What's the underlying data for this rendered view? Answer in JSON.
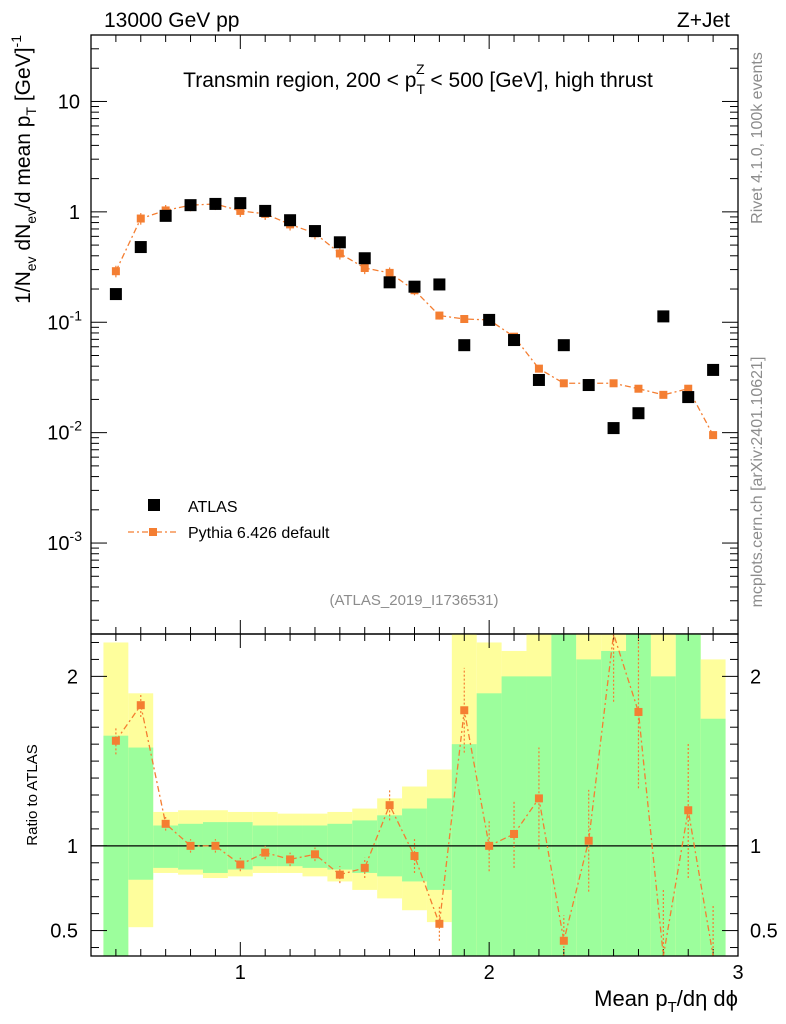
{
  "header": {
    "left": "13000 GeV pp",
    "right": "Z+Jet"
  },
  "side_labels": {
    "rivet": "Rivet 4.1.0,  100k events",
    "mcplots": "mcplots.cern.ch [arXiv:2401.10621]"
  },
  "chart_data": [
    {
      "type": "scatter",
      "title": "Transmin region, 200 < p_T^Z < 500 [GeV], high thrust",
      "title_parts": {
        "pre": "Transmin region, 200 < p",
        "sub": "T",
        "sup": "Z",
        "post": " < 500 [GeV], high thrust"
      },
      "ylabel": "1/N_ev dN_ev/d mean p_T [GeV]^-1",
      "ylabel_parts": {
        "a": "1/N",
        "a_sub": "ev",
        "b": " dN",
        "b_sub": "ev",
        "c": "/d mean p",
        "c_sub": "T",
        "d": " [GeV]",
        "d_sup": "-1"
      },
      "yscale": "log",
      "ylim": [
        0.00015,
        40
      ],
      "xlim": [
        0.4,
        3.0
      ],
      "x_ticks": [
        1,
        2,
        3
      ],
      "x_tick_labels": [
        "1",
        "2",
        "3"
      ],
      "y_ticks": [
        0.001,
        0.01,
        0.1,
        1,
        10
      ],
      "y_tick_labels": [
        {
          "base": "10",
          "exp": "-3"
        },
        {
          "base": "10",
          "exp": "-2"
        },
        {
          "base": "10",
          "exp": "-1"
        },
        {
          "base": "1",
          "exp": ""
        },
        {
          "base": "10",
          "exp": ""
        }
      ],
      "watermark": "(ATLAS_2019_I1736531)",
      "legend_position": "lower-left",
      "series": [
        {
          "name": "ATLAS",
          "marker": "square",
          "color": "#000000",
          "x": [
            0.5,
            0.6,
            0.7,
            0.8,
            0.9,
            1.0,
            1.1,
            1.2,
            1.3,
            1.4,
            1.5,
            1.6,
            1.7,
            1.8,
            1.9,
            2.0,
            2.1,
            2.2,
            2.3,
            2.4,
            2.5,
            2.6,
            2.7,
            2.8,
            2.9
          ],
          "y": [
            0.18,
            0.48,
            0.92,
            1.15,
            1.18,
            1.2,
            1.02,
            0.84,
            0.67,
            0.53,
            0.38,
            0.23,
            0.21,
            0.22,
            0.062,
            0.105,
            0.069,
            0.03,
            0.062,
            0.027,
            0.011,
            0.015,
            0.113,
            0.021,
            0.037
          ]
        },
        {
          "name": "Pythia 6.426 default",
          "marker": "square-line",
          "color": "#f47e32",
          "x": [
            0.5,
            0.6,
            0.7,
            0.8,
            0.9,
            1.0,
            1.1,
            1.2,
            1.3,
            1.4,
            1.5,
            1.6,
            1.7,
            1.8,
            1.9,
            2.0,
            2.1,
            2.2,
            2.3,
            2.4,
            2.5,
            2.6,
            2.7,
            2.8,
            2.9
          ],
          "y": [
            0.29,
            0.87,
            1.03,
            1.15,
            1.18,
            1.02,
            0.96,
            0.77,
            0.64,
            0.42,
            0.31,
            0.28,
            0.195,
            0.115,
            0.107,
            0.105,
            0.074,
            0.038,
            0.028,
            0.028,
            0.028,
            0.025,
            0.022,
            0.025,
            0.0095
          ],
          "yerr": [
            0.03,
            0.03,
            0.03,
            0.03,
            0.03,
            0.03,
            0.03,
            0.03,
            0.03,
            0.03,
            0.03,
            0.03,
            0.025,
            0.02,
            0.015,
            0.015,
            0.012,
            0.008,
            0.006,
            0.006,
            0.006,
            0.006,
            0.006,
            0.006,
            0.005
          ]
        }
      ]
    },
    {
      "type": "line",
      "ylabel": "Ratio to ATLAS",
      "xlabel": "Mean p_T/dη dϕ",
      "xlabel_parts": {
        "a": "Mean p",
        "a_sub": "T",
        "b": "/dη dϕ"
      },
      "ylim": [
        0.35,
        2.25
      ],
      "xlim": [
        0.4,
        3.0
      ],
      "y_ticks": [
        0.5,
        1,
        2
      ],
      "y_tick_labels": [
        "0.5",
        "1",
        "2"
      ],
      "reference_line": 1,
      "bands": {
        "bin_edges": [
          0.45,
          0.55,
          0.65,
          0.75,
          0.85,
          0.95,
          1.05,
          1.15,
          1.25,
          1.35,
          1.45,
          1.55,
          1.65,
          1.75,
          1.85,
          1.95,
          2.05,
          2.15,
          2.25,
          2.35,
          2.45,
          2.55,
          2.65,
          2.75,
          2.85,
          2.95
        ],
        "green_color": "#9cfe9c",
        "yellow_color": "#fefe9c",
        "green_low": [
          0.35,
          0.8,
          0.87,
          0.86,
          0.84,
          0.86,
          0.88,
          0.88,
          0.87,
          0.86,
          0.84,
          0.82,
          0.79,
          0.74,
          0.35,
          0.35,
          0.35,
          0.35,
          0.35,
          0.35,
          0.35,
          0.35,
          0.35,
          0.35,
          0.35
        ],
        "green_high": [
          1.65,
          1.58,
          1.12,
          1.13,
          1.14,
          1.14,
          1.12,
          1.12,
          1.12,
          1.13,
          1.15,
          1.18,
          1.22,
          1.28,
          1.6,
          1.9,
          2.0,
          2.0,
          2.25,
          2.1,
          2.15,
          2.25,
          2.0,
          2.25,
          1.75
        ],
        "yellow_low": [
          0.35,
          0.52,
          0.84,
          0.83,
          0.81,
          0.82,
          0.84,
          0.84,
          0.82,
          0.79,
          0.74,
          0.69,
          0.62,
          0.55,
          0.35,
          0.35,
          0.35,
          0.35,
          0.35,
          0.35,
          0.35,
          0.35,
          0.35,
          0.35,
          0.35
        ],
        "yellow_high": [
          2.2,
          1.9,
          1.2,
          1.21,
          1.21,
          1.2,
          1.2,
          1.19,
          1.19,
          1.2,
          1.22,
          1.28,
          1.35,
          1.45,
          2.25,
          2.2,
          2.15,
          2.25,
          2.25,
          2.25,
          2.25,
          2.25,
          2.25,
          2.25,
          2.1
        ]
      },
      "series": [
        {
          "name": "Pythia 6.426 default / ATLAS",
          "color": "#f47e32",
          "x": [
            0.5,
            0.6,
            0.7,
            0.8,
            0.9,
            1.0,
            1.1,
            1.2,
            1.3,
            1.4,
            1.5,
            1.6,
            1.7,
            1.8,
            1.9,
            2.0,
            2.1,
            2.2,
            2.3,
            2.4,
            2.5,
            2.6,
            2.7,
            2.8,
            2.9
          ],
          "y": [
            1.62,
            1.83,
            1.13,
            1.0,
            1.0,
            0.89,
            0.96,
            0.92,
            0.95,
            0.83,
            0.87,
            1.24,
            0.94,
            0.54,
            1.8,
            1.0,
            1.07,
            1.28,
            0.44,
            1.03,
            2.25,
            1.79,
            0.35,
            1.21,
            0.35
          ],
          "yerr": [
            0.08,
            0.07,
            0.04,
            0.04,
            0.04,
            0.04,
            0.04,
            0.04,
            0.04,
            0.05,
            0.06,
            0.09,
            0.1,
            0.1,
            0.25,
            0.15,
            0.2,
            0.3,
            0.15,
            0.3,
            0.4,
            0.45,
            0.4,
            0.4,
            0.3
          ]
        }
      ]
    }
  ]
}
